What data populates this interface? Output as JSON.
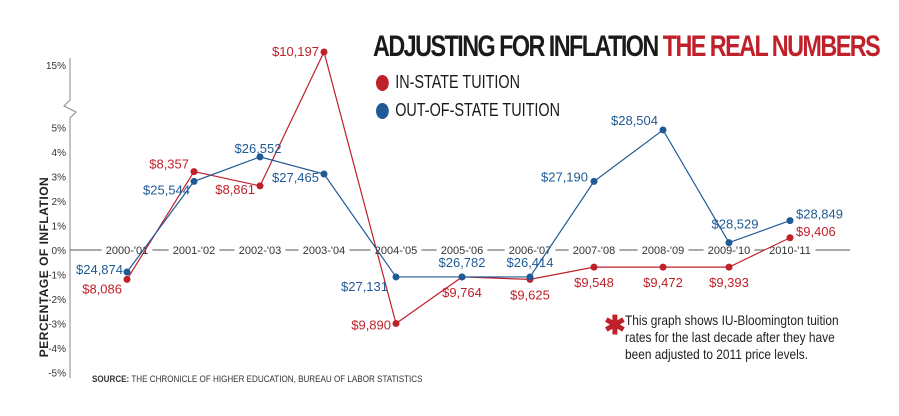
{
  "chart_data": {
    "type": "line",
    "title": "ADJUSTING FOR INFLATION",
    "title_highlight": "THE REAL NUMBERS",
    "ylabel": "PERCENTAGE OF INFLATION",
    "xlabel": "",
    "y_ticks": [
      "15%",
      "5%",
      "4%",
      "3%",
      "2%",
      "1%",
      "0%",
      "-1%",
      "-2%",
      "-3%",
      "-4%",
      "-5%"
    ],
    "y_axis_break": [
      5,
      15
    ],
    "ylim": [
      -5,
      16
    ],
    "grid": false,
    "legend_position": "top-right",
    "categories": [
      "2000-'01",
      "2001-'02",
      "2002-'03",
      "2003-'04",
      "2004-'05",
      "2005-'06",
      "2006-'07",
      "2007-'08",
      "2008-'09",
      "2009-'10",
      "2010-'11"
    ],
    "series": [
      {
        "name": "IN-STATE TUITION",
        "color": "#c0202a",
        "values": [
          -1.2,
          3.2,
          5.7,
          16.0,
          -3.0,
          -1.1,
          -1.2,
          -0.7,
          -0.7,
          -0.7,
          0.5
        ],
        "labels": [
          "$8,086",
          "$8,357",
          "$8,861",
          "$10,197",
          "$9,890",
          "$9,764",
          "$9,625",
          "$9,548",
          "$9,472",
          "$9,393",
          "$9,406"
        ]
      },
      {
        "name": "OUT-OF-STATE TUITION",
        "color": "#1f5a96",
        "values": [
          -0.9,
          2.8,
          3.8,
          3.1,
          -1.1,
          -1.1,
          -1.1,
          2.8,
          4.9,
          0.3,
          1.2
        ],
        "labels": [
          "$24,874",
          "$25,544",
          "$26,552",
          "$27,465",
          "$27,131",
          "$26,782",
          "$26,414",
          "$27,190",
          "$28,504",
          "$28,529",
          "$28,849"
        ]
      }
    ]
  },
  "note": "This graph shows IU-Bloomington tuition rates for the last decade after they have been adjusted to 2011 price levels.",
  "source_label": "SOURCE:",
  "source_text": " THE CHRONICLE OF HIGHER EDUCATION, BUREAU OF LABOR STATISTICS"
}
